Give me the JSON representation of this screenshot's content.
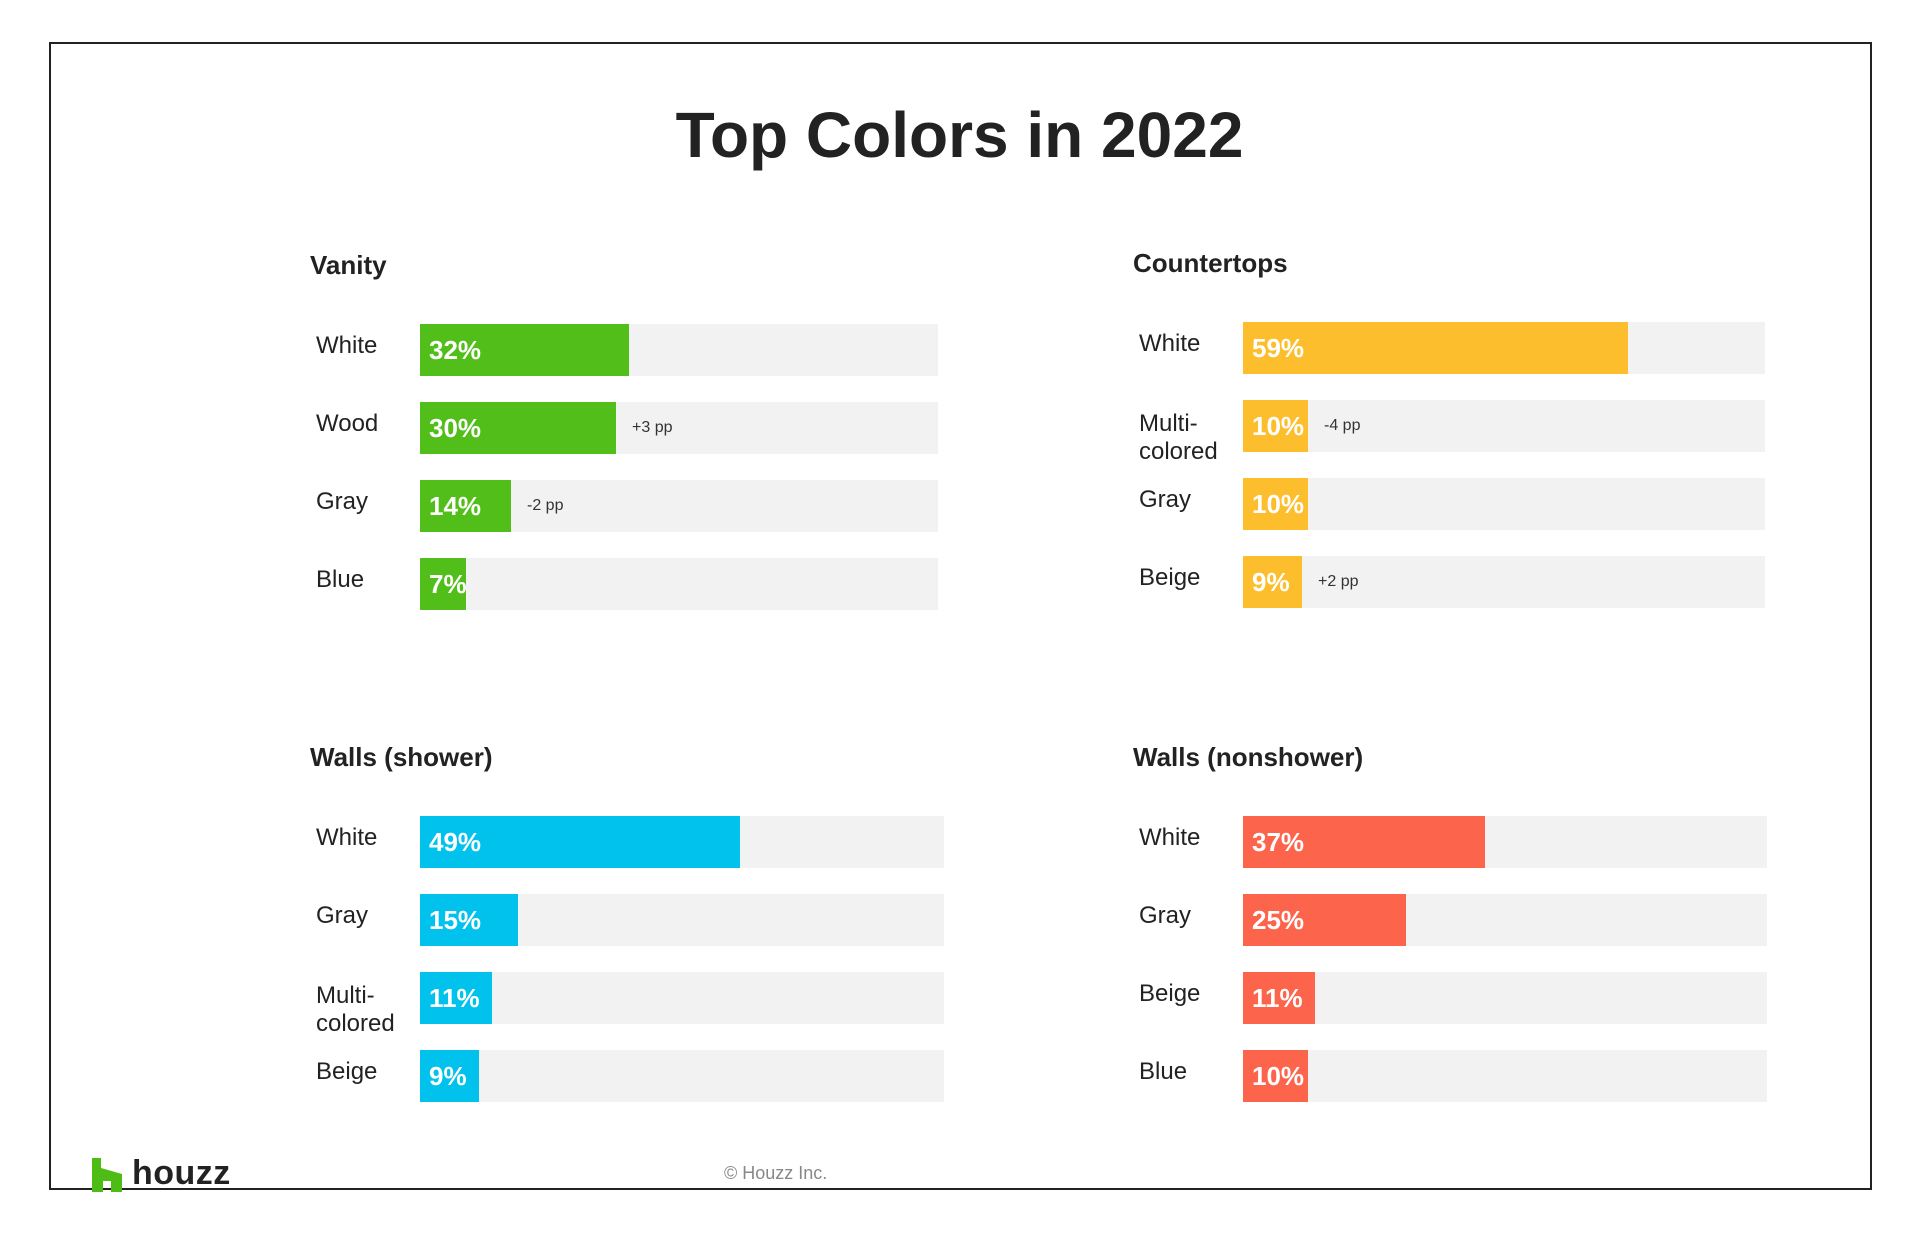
{
  "title": "Top Colors in 2022",
  "chart_data": [
    {
      "type": "bar",
      "orientation": "horizontal",
      "title": "Vanity",
      "color": "#52be1a",
      "categories": [
        "White",
        "Wood",
        "Gray",
        "Blue"
      ],
      "values": [
        32,
        30,
        14,
        7
      ],
      "value_labels": [
        "32%",
        "30%",
        "14%",
        "7%"
      ],
      "annotations": [
        "",
        "+3 pp",
        "-2 pp",
        ""
      ]
    },
    {
      "type": "bar",
      "orientation": "horizontal",
      "title": "Countertops",
      "color": "#fdbe2d",
      "categories": [
        "White",
        "Multi-\ncolored",
        "Gray",
        "Beige"
      ],
      "values": [
        59,
        10,
        10,
        9
      ],
      "value_labels": [
        "59%",
        "10%",
        "10%",
        "9%"
      ],
      "annotations": [
        "",
        "-4 pp",
        "",
        "+2 pp"
      ]
    },
    {
      "type": "bar",
      "orientation": "horizontal",
      "title": "Walls (shower)",
      "color": "#00c2ec",
      "categories": [
        "White",
        "Gray",
        "Multi-\ncolored",
        "Beige"
      ],
      "values": [
        49,
        15,
        11,
        9
      ],
      "value_labels": [
        "49%",
        "15%",
        "11%",
        "9%"
      ],
      "annotations": [
        "",
        "",
        "",
        ""
      ]
    },
    {
      "type": "bar",
      "orientation": "horizontal",
      "title": "Walls (nonshower)",
      "color": "#fc654c",
      "categories": [
        "White",
        "Gray",
        "Beige",
        "Blue"
      ],
      "values": [
        37,
        25,
        11,
        10
      ],
      "value_labels": [
        "37%",
        "25%",
        "11%",
        "10%"
      ],
      "annotations": [
        "",
        "",
        "",
        ""
      ]
    }
  ],
  "footer": {
    "logo_text": "houzz",
    "logo_color": "#4dbc15",
    "copyright": "© Houzz Inc."
  }
}
